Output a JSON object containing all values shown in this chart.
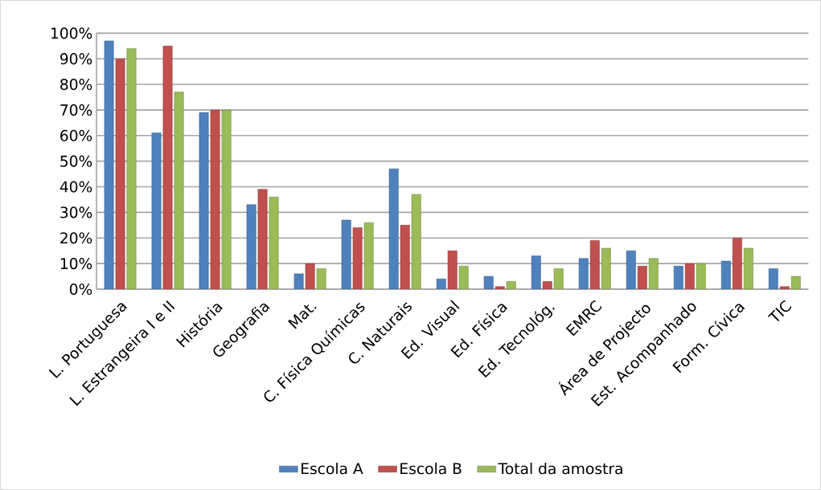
{
  "chart_data": {
    "type": "bar",
    "categories": [
      "L. Portuguesa",
      "L. Estrangeira I e II",
      "História",
      "Geografia",
      "Mat.",
      "C. Física Químicas",
      "C. Naturais",
      "Ed. Visual",
      "Ed. Física",
      "Ed. Tecnológ.",
      "EMRC",
      "Área de Projecto",
      "Est. Acompanhado",
      "Form. Cívica",
      "TIC"
    ],
    "series": [
      {
        "name": "Escola A",
        "color": "#4f81bd",
        "values": [
          97,
          61,
          69,
          33,
          6,
          27,
          47,
          4,
          5,
          13,
          12,
          15,
          9,
          11,
          8
        ]
      },
      {
        "name": "Escola B",
        "color": "#c0504d",
        "values": [
          90,
          95,
          70,
          39,
          10,
          24,
          25,
          15,
          1,
          3,
          19,
          9,
          10,
          20,
          1
        ]
      },
      {
        "name": "Total da amostra",
        "color": "#9bbb59",
        "values": [
          94,
          77,
          70,
          36,
          8,
          26,
          37,
          9,
          3,
          8,
          16,
          12,
          10,
          16,
          5
        ]
      }
    ],
    "ylim": [
      0,
      100
    ],
    "yticks": [
      {
        "value": 0,
        "label": "0%"
      },
      {
        "value": 10,
        "label": "10%"
      },
      {
        "value": 20,
        "label": "20%"
      },
      {
        "value": 30,
        "label": "30%"
      },
      {
        "value": 40,
        "label": "40%"
      },
      {
        "value": 50,
        "label": "50%"
      },
      {
        "value": 60,
        "label": "60%"
      },
      {
        "value": 70,
        "label": "70%"
      },
      {
        "value": 80,
        "label": "80%"
      },
      {
        "value": 90,
        "label": "90%"
      },
      {
        "value": 100,
        "label": "100%"
      }
    ],
    "grid": "y",
    "legend": "bottom"
  }
}
